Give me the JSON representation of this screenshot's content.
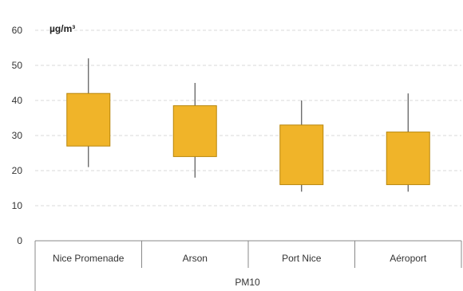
{
  "chart_data": {
    "type": "box",
    "unit": "µg/m³",
    "group_label": "PM10",
    "ylim": [
      0,
      60
    ],
    "yticks": [
      0,
      10,
      20,
      30,
      40,
      50,
      60
    ],
    "grid": true,
    "colors": {
      "box_fill": "#F0B429",
      "box_stroke": "#B8860B",
      "whisker": "#555555"
    },
    "categories": [
      "Nice Promenade",
      "Arson",
      "Port Nice",
      "Aéroport"
    ],
    "series": [
      {
        "min": 21,
        "q1": 27,
        "q3": 42,
        "max": 52
      },
      {
        "min": 18,
        "q1": 24,
        "q3": 38.5,
        "max": 45
      },
      {
        "min": 14,
        "q1": 16,
        "q3": 33,
        "max": 40
      },
      {
        "min": 14,
        "q1": 16,
        "q3": 31,
        "max": 42
      }
    ]
  }
}
